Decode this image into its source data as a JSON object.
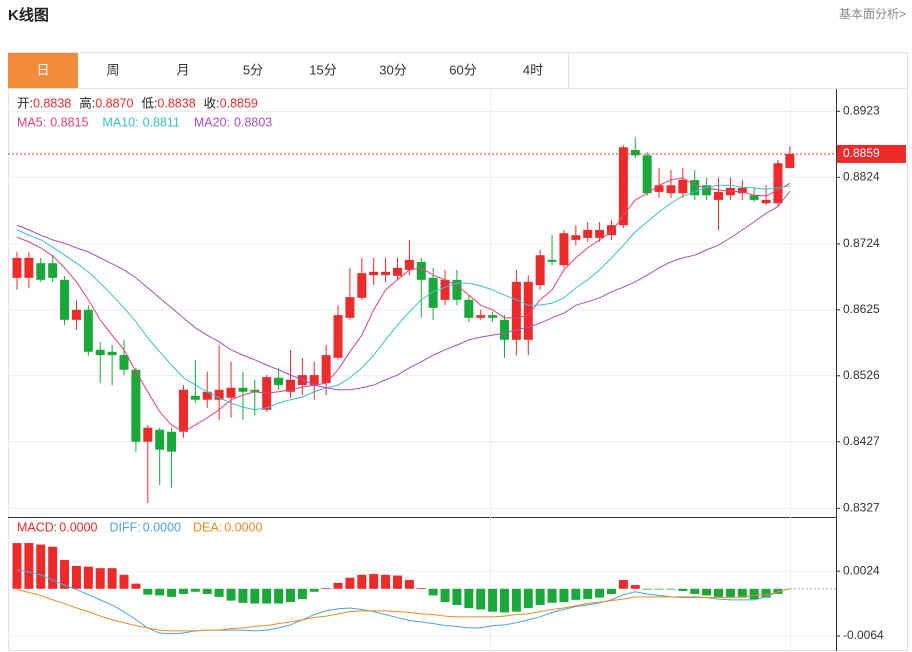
{
  "header": {
    "title": "K线图",
    "link": "基本面分析>"
  },
  "tabs": [
    "日",
    "周",
    "月",
    "5分",
    "15分",
    "30分",
    "60分",
    "4时"
  ],
  "active_tab": 0,
  "chart_data": [
    {
      "type": "candlestick",
      "up_color": "#ee2b2b",
      "down_color": "#1aa83a",
      "ylim": [
        0.8317,
        0.8955
      ],
      "yticks": [
        0.8923,
        0.8824,
        0.8724,
        0.8625,
        0.8526,
        0.8427,
        0.8327
      ],
      "grid": true,
      "last_price": 0.8859,
      "summary": [
        {
          "label": "开:",
          "value": 0.8838
        },
        {
          "label": "高:",
          "value": 0.887,
          "value_label": "0.8870"
        },
        {
          "label": "低:",
          "value": 0.8838
        },
        {
          "label": "收:",
          "value": 0.8859
        }
      ],
      "open": [
        0.8673,
        0.8673,
        0.8695,
        0.8695,
        0.867,
        0.861,
        0.8625,
        0.8565,
        0.8562,
        0.8557,
        0.8535,
        0.8427,
        0.8445,
        0.8442,
        0.8442,
        0.8496,
        0.849,
        0.849,
        0.8493,
        0.8508,
        0.8505,
        0.8475,
        0.8523,
        0.8502,
        0.8512,
        0.8512,
        0.8515,
        0.8553,
        0.8613,
        0.8643,
        0.8677,
        0.8677,
        0.8676,
        0.8685,
        0.8697,
        0.8673,
        0.864,
        0.867,
        0.864,
        0.8613,
        0.8617,
        0.861,
        0.858,
        0.858,
        0.8662,
        0.87,
        0.8692,
        0.873,
        0.8733,
        0.8733,
        0.8737,
        0.8752,
        0.8865,
        0.8857,
        0.8802,
        0.88,
        0.88,
        0.882,
        0.8812,
        0.879,
        0.8797,
        0.88,
        0.8797,
        0.8785,
        0.8785,
        0.8838
      ],
      "high": [
        0.8712,
        0.8712,
        0.8703,
        0.8707,
        0.8676,
        0.864,
        0.8632,
        0.8577,
        0.8572,
        0.858,
        0.8538,
        0.8452,
        0.8448,
        0.8448,
        0.8512,
        0.855,
        0.8532,
        0.8572,
        0.8547,
        0.8532,
        0.852,
        0.8527,
        0.8538,
        0.8565,
        0.8553,
        0.8547,
        0.8572,
        0.8632,
        0.8688,
        0.8703,
        0.8703,
        0.8703,
        0.8703,
        0.873,
        0.8703,
        0.8688,
        0.8685,
        0.8685,
        0.8647,
        0.8625,
        0.8622,
        0.8617,
        0.8685,
        0.8677,
        0.8715,
        0.8737,
        0.8745,
        0.8752,
        0.8757,
        0.8757,
        0.876,
        0.8872,
        0.8884,
        0.8862,
        0.8838,
        0.8835,
        0.8838,
        0.8835,
        0.8823,
        0.8823,
        0.8823,
        0.882,
        0.8808,
        0.8812,
        0.885,
        0.887
      ],
      "low": [
        0.8655,
        0.8658,
        0.8667,
        0.8667,
        0.8602,
        0.8595,
        0.8556,
        0.8515,
        0.8512,
        0.8527,
        0.8412,
        0.8335,
        0.8362,
        0.8358,
        0.8433,
        0.8485,
        0.8478,
        0.846,
        0.8463,
        0.846,
        0.8467,
        0.8472,
        0.8505,
        0.8493,
        0.8497,
        0.849,
        0.8497,
        0.855,
        0.861,
        0.864,
        0.8662,
        0.8667,
        0.867,
        0.8677,
        0.8613,
        0.861,
        0.8632,
        0.8632,
        0.8607,
        0.861,
        0.8607,
        0.8553,
        0.8557,
        0.8557,
        0.8655,
        0.8692,
        0.8688,
        0.8722,
        0.8727,
        0.8727,
        0.873,
        0.8748,
        0.8853,
        0.8796,
        0.8793,
        0.8793,
        0.8793,
        0.879,
        0.879,
        0.8745,
        0.879,
        0.879,
        0.8787,
        0.8782,
        0.8779,
        0.8838
      ],
      "close": [
        0.8703,
        0.8703,
        0.867,
        0.8673,
        0.861,
        0.8625,
        0.8562,
        0.8557,
        0.8557,
        0.8535,
        0.8427,
        0.8448,
        0.8415,
        0.8412,
        0.8505,
        0.849,
        0.8502,
        0.8505,
        0.8508,
        0.8502,
        0.8502,
        0.8524,
        0.8512,
        0.852,
        0.8527,
        0.8527,
        0.8557,
        0.8617,
        0.8644,
        0.868,
        0.8682,
        0.8682,
        0.8688,
        0.87,
        0.867,
        0.8628,
        0.867,
        0.864,
        0.8613,
        0.8617,
        0.8613,
        0.858,
        0.8667,
        0.8667,
        0.8707,
        0.8697,
        0.874,
        0.8737,
        0.8745,
        0.8745,
        0.8752,
        0.8869,
        0.8857,
        0.88,
        0.8812,
        0.8812,
        0.882,
        0.8797,
        0.8797,
        0.8802,
        0.8808,
        0.8808,
        0.879,
        0.879,
        0.8845,
        0.8859
      ],
      "series": [
        {
          "name": "MA5:",
          "color": "#e8407a",
          "value": 0.8815,
          "values": [
            0.8734,
            0.8727,
            0.8718,
            0.8706,
            0.8688,
            0.8667,
            0.864,
            0.861,
            0.8587,
            0.8565,
            0.8532,
            0.8502,
            0.8472,
            0.8452,
            0.8442,
            0.8452,
            0.8463,
            0.8475,
            0.849,
            0.8497,
            0.8502,
            0.85,
            0.8502,
            0.8505,
            0.8509,
            0.8512,
            0.8515,
            0.8535,
            0.8562,
            0.8587,
            0.8625,
            0.8655,
            0.867,
            0.8685,
            0.8688,
            0.8677,
            0.867,
            0.8662,
            0.8647,
            0.8632,
            0.8625,
            0.8613,
            0.8613,
            0.8617,
            0.864,
            0.8655,
            0.8685,
            0.8703,
            0.8718,
            0.873,
            0.8742,
            0.8767,
            0.879,
            0.88,
            0.8812,
            0.882,
            0.8823,
            0.8812,
            0.8808,
            0.8805,
            0.8803,
            0.8802,
            0.8797,
            0.8796,
            0.8805,
            0.8815
          ]
        },
        {
          "name": "MA10:",
          "color": "#37c0d3",
          "value": 0.8811,
          "values": [
            0.8745,
            0.8737,
            0.873,
            0.8719,
            0.8707,
            0.8695,
            0.8682,
            0.8665,
            0.8647,
            0.8628,
            0.8607,
            0.8583,
            0.8562,
            0.8542,
            0.8523,
            0.8512,
            0.8502,
            0.8493,
            0.8485,
            0.8479,
            0.8475,
            0.8478,
            0.8485,
            0.849,
            0.8494,
            0.8502,
            0.8508,
            0.8512,
            0.8523,
            0.8538,
            0.8557,
            0.858,
            0.8602,
            0.8622,
            0.864,
            0.8652,
            0.8659,
            0.8665,
            0.8665,
            0.8661,
            0.8655,
            0.8647,
            0.864,
            0.8632,
            0.8632,
            0.8635,
            0.8643,
            0.8658,
            0.867,
            0.8685,
            0.8703,
            0.8722,
            0.8742,
            0.8757,
            0.8772,
            0.8785,
            0.8796,
            0.8802,
            0.8809,
            0.8812,
            0.8812,
            0.8809,
            0.8808,
            0.8806,
            0.8808,
            0.8811
          ]
        },
        {
          "name": "MA20:",
          "color": "#a64fc0",
          "value": 0.8803,
          "values": [
            0.8752,
            0.8745,
            0.8737,
            0.873,
            0.8725,
            0.8718,
            0.8712,
            0.8703,
            0.8694,
            0.8685,
            0.8673,
            0.8658,
            0.8643,
            0.8628,
            0.8613,
            0.8598,
            0.8587,
            0.8577,
            0.8565,
            0.8557,
            0.855,
            0.8542,
            0.8535,
            0.8527,
            0.852,
            0.8512,
            0.8508,
            0.8505,
            0.8505,
            0.8508,
            0.8512,
            0.852,
            0.8527,
            0.8538,
            0.8547,
            0.8557,
            0.8565,
            0.8572,
            0.858,
            0.8584,
            0.8587,
            0.859,
            0.8595,
            0.8599,
            0.8605,
            0.8613,
            0.862,
            0.8632,
            0.8637,
            0.8643,
            0.8652,
            0.8659,
            0.8667,
            0.8677,
            0.8688,
            0.8697,
            0.8703,
            0.8707,
            0.8715,
            0.8722,
            0.8733,
            0.8745,
            0.8757,
            0.877,
            0.878,
            0.8803
          ]
        }
      ]
    },
    {
      "type": "macd",
      "up_color": "#ee2b2b",
      "down_color": "#1aa83a",
      "ylim": [
        -0.0083,
        0.0096
      ],
      "yticks": [
        0.0024,
        -0.0064
      ],
      "legend": [
        {
          "label": "MACD:",
          "value": 0,
          "value_label": "0.0000",
          "color": "#ee2b2b"
        },
        {
          "label": "DIFF:",
          "value": 0,
          "value_label": "0.0000",
          "color": "#4aa3e0"
        },
        {
          "label": "DEA:",
          "value": 0,
          "value_label": "0.0000",
          "color": "#f08a24"
        }
      ],
      "values": [
        0.0062,
        0.0062,
        0.006,
        0.0057,
        0.0039,
        0.0031,
        0.003,
        0.0028,
        0.0028,
        0.0019,
        0.0007,
        -0.0008,
        -0.0009,
        -0.0011,
        -0.0007,
        -0.0004,
        -0.0007,
        -0.0011,
        -0.0016,
        -0.0019,
        -0.002,
        -0.002,
        -0.002,
        -0.0018,
        -0.0014,
        -0.0004,
        0.0001,
        0.0008,
        0.0015,
        0.0019,
        0.002,
        0.0019,
        0.0018,
        0.0012,
        0.0001,
        -0.0009,
        -0.0018,
        -0.0022,
        -0.0026,
        -0.0028,
        -0.0031,
        -0.0032,
        -0.0031,
        -0.0026,
        -0.0022,
        -0.0019,
        -0.0018,
        -0.0015,
        -0.0014,
        -0.0012,
        -0.0007,
        0.0012,
        0.0005,
        -0.0001,
        -0.0001,
        -0.0001,
        -0.0003,
        -0.0007,
        -0.0009,
        -0.0011,
        -0.0011,
        -0.0012,
        -0.0014,
        -0.0012,
        -0.0007,
        0
      ],
      "series": [
        {
          "name": "DIFF",
          "color": "#4aa3e0",
          "values": [
            0.0026,
            0.0023,
            0.0019,
            0.0012,
            0.0005,
            -0.0001,
            -0.0008,
            -0.0015,
            -0.0022,
            -0.0031,
            -0.0042,
            -0.0053,
            -0.006,
            -0.0061,
            -0.006,
            -0.0057,
            -0.0056,
            -0.0056,
            -0.0056,
            -0.0056,
            -0.0057,
            -0.0056,
            -0.0053,
            -0.0049,
            -0.0042,
            -0.0035,
            -0.003,
            -0.0027,
            -0.0026,
            -0.0028,
            -0.0031,
            -0.0035,
            -0.0039,
            -0.0043,
            -0.0045,
            -0.0047,
            -0.005,
            -0.0051,
            -0.0053,
            -0.0053,
            -0.005,
            -0.0049,
            -0.0046,
            -0.0042,
            -0.0038,
            -0.0032,
            -0.0028,
            -0.0024,
            -0.0022,
            -0.0019,
            -0.0015,
            -0.0008,
            -0.0004,
            -0.0007,
            -0.0009,
            -0.0011,
            -0.0011,
            -0.0011,
            -0.0012,
            -0.0014,
            -0.0015,
            -0.0015,
            -0.0015,
            -0.0011,
            -0.0004,
            0
          ]
        },
        {
          "name": "DEA",
          "color": "#f08a24",
          "values": [
            -0.0001,
            -0.0005,
            -0.0009,
            -0.0015,
            -0.002,
            -0.0026,
            -0.0031,
            -0.0037,
            -0.0042,
            -0.0046,
            -0.005,
            -0.0053,
            -0.0056,
            -0.0057,
            -0.0057,
            -0.0057,
            -0.0056,
            -0.0056,
            -0.0054,
            -0.0053,
            -0.0051,
            -0.005,
            -0.0047,
            -0.0045,
            -0.0042,
            -0.0039,
            -0.0037,
            -0.0034,
            -0.0031,
            -0.003,
            -0.003,
            -0.003,
            -0.0031,
            -0.0032,
            -0.0034,
            -0.0035,
            -0.0037,
            -0.0038,
            -0.0038,
            -0.0038,
            -0.0038,
            -0.0037,
            -0.0035,
            -0.0034,
            -0.0031,
            -0.0028,
            -0.0026,
            -0.0023,
            -0.002,
            -0.0018,
            -0.0016,
            -0.0014,
            -0.0011,
            -0.0011,
            -0.0011,
            -0.0011,
            -0.0012,
            -0.0012,
            -0.0012,
            -0.0012,
            -0.0012,
            -0.0011,
            -0.0009,
            -0.0008,
            -0.0004,
            0
          ]
        }
      ]
    }
  ]
}
